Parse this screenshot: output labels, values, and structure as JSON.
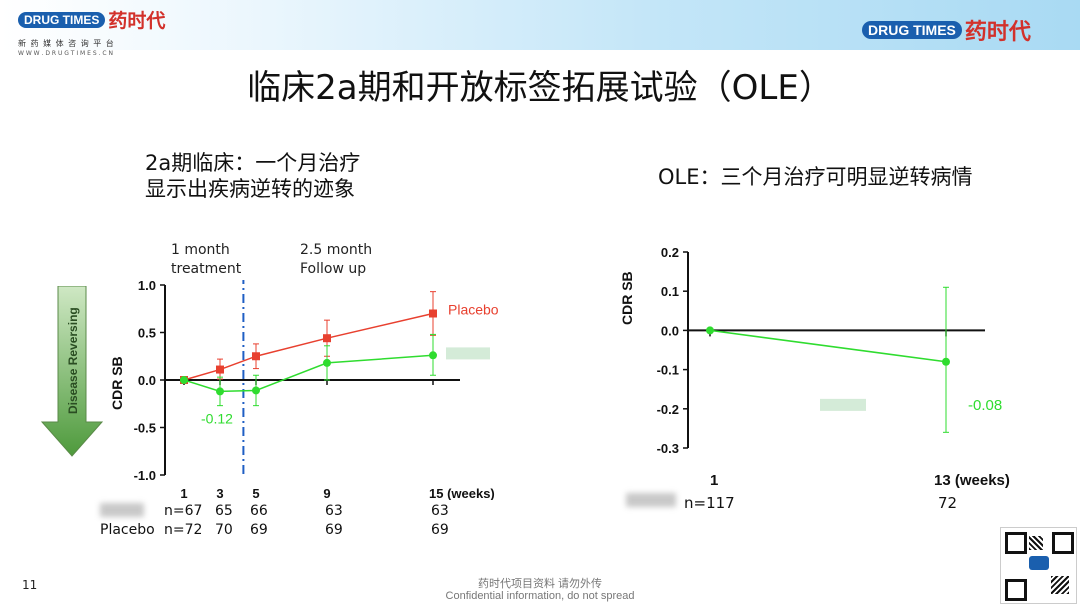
{
  "header": {
    "logo_left": {
      "badge": "DRUG TIMES",
      "cn": "药时代",
      "tagline": "新 药 媒 体 咨 询 平 台",
      "url": "W W W . D R U G T I M E S . C N"
    },
    "logo_right": {
      "badge": "DRUG TIMES",
      "cn": "药时代"
    }
  },
  "slide": {
    "title": "临床2a期和开放标签拓展试验（OLE）",
    "left_subtitle_line1": "2a期临床：一个月治疗",
    "left_subtitle_line2": "显示出疾病逆转的迹象",
    "right_subtitle": "OLE：三个月治疗可明显逆转病情",
    "arrow_label": "Disease Reversing",
    "page_number": "11",
    "footer_line1": "药时代项目资料 请勿外传",
    "footer_line2": "Confidential information, do not spread"
  },
  "colors": {
    "placebo": "#e8402f",
    "treatment": "#2fdc2f",
    "axis": "#111111",
    "dashline": "#1f5fc4",
    "arrow": "#4e9a3c"
  },
  "chart_data": [
    {
      "type": "line",
      "ylabel": "CDR SB",
      "ylim": [
        -1.0,
        1.0
      ],
      "yticks": [
        "1.0",
        "0.5",
        "0.0",
        "-0.5",
        "-1.0"
      ],
      "x_tick_labels": [
        "1",
        "3",
        "5",
        "9",
        "15 (weeks)"
      ],
      "x": [
        1,
        3,
        5,
        9,
        15
      ],
      "series": [
        {
          "name": "Placebo",
          "values": [
            0.0,
            0.11,
            0.25,
            0.44,
            0.7
          ],
          "err_low": [
            0.0,
            0.01,
            0.12,
            0.25,
            0.47
          ],
          "err_high": [
            0.0,
            0.22,
            0.38,
            0.63,
            0.93
          ]
        },
        {
          "name": "",
          "values": [
            0.0,
            -0.12,
            -0.11,
            0.18,
            0.26
          ],
          "err_low": [
            0.0,
            -0.27,
            -0.27,
            0.0,
            0.05
          ],
          "err_high": [
            0.0,
            0.03,
            0.05,
            0.36,
            0.48
          ]
        }
      ],
      "annotations": {
        "treatment_window": "1 month\ntreatment",
        "followup": "2.5 month\nFollow up",
        "value_label": "-0.12",
        "divider_week": 4.3
      },
      "n_table": {
        "rows": [
          {
            "label": "",
            "values": [
              "n=67",
              "65",
              "66",
              "63",
              "63"
            ]
          },
          {
            "label": "Placebo",
            "values": [
              "n=72",
              "70",
              "69",
              "69",
              "69"
            ]
          }
        ]
      }
    },
    {
      "type": "line",
      "ylabel": "CDR SB",
      "ylim": [
        -0.3,
        0.2
      ],
      "yticks": [
        "0.2",
        "0.1",
        "0.0",
        "-0.1",
        "-0.2",
        "-0.3"
      ],
      "x_tick_labels": [
        "1",
        "13 (weeks)"
      ],
      "x": [
        1,
        13
      ],
      "series": [
        {
          "name": "",
          "values": [
            0.0,
            -0.08
          ],
          "err_low": [
            0.0,
            -0.26
          ],
          "err_high": [
            0.0,
            0.11
          ]
        }
      ],
      "annotations": {
        "value_label": "-0.08"
      },
      "n_table": {
        "rows": [
          {
            "label": "",
            "values": [
              "n=117",
              "72"
            ]
          }
        ]
      }
    }
  ]
}
